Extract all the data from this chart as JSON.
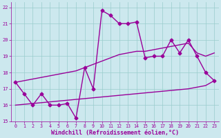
{
  "bg_color": "#cce8ee",
  "grid_color": "#99cccc",
  "line_color": "#990099",
  "markersize": 2.5,
  "linewidth": 1.0,
  "xlabel": "Windchill (Refroidissement éolien,°C)",
  "xlim": [
    -0.5,
    23.5
  ],
  "ylim": [
    15,
    22.3
  ],
  "yticks": [
    15,
    16,
    17,
    18,
    19,
    20,
    21,
    22
  ],
  "xticks": [
    0,
    1,
    2,
    3,
    4,
    5,
    6,
    7,
    8,
    9,
    10,
    11,
    12,
    13,
    14,
    15,
    16,
    17,
    18,
    19,
    20,
    21,
    22,
    23
  ],
  "y_main": [
    17.4,
    16.7,
    16.0,
    16.7,
    16.0,
    16.0,
    16.1,
    15.2,
    18.3,
    17.0,
    21.8,
    21.5,
    21.0,
    21.0,
    21.1,
    18.9,
    19.0,
    19.0,
    20.0,
    19.2,
    20.0,
    19.0,
    18.0,
    17.5
  ],
  "y_upper": [
    17.4,
    17.5,
    17.6,
    17.7,
    17.8,
    17.9,
    18.0,
    18.1,
    18.3,
    18.5,
    18.7,
    18.9,
    19.1,
    19.2,
    19.3,
    19.3,
    19.4,
    19.5,
    19.6,
    19.7,
    19.8,
    19.2,
    19.0,
    19.2
  ],
  "y_lower": [
    16.0,
    16.05,
    16.1,
    16.15,
    16.2,
    16.25,
    16.3,
    16.35,
    16.4,
    16.45,
    16.5,
    16.55,
    16.6,
    16.65,
    16.7,
    16.75,
    16.8,
    16.85,
    16.9,
    16.95,
    17.0,
    17.1,
    17.2,
    17.5
  ]
}
